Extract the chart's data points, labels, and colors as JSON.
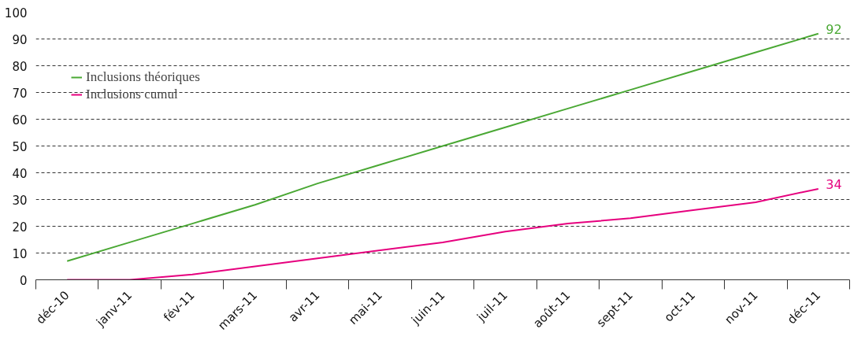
{
  "chart_data": {
    "type": "line",
    "categories": [
      "déc-10",
      "janv-11",
      "fév-11",
      "mars-11",
      "avr-11",
      "mai-11",
      "juin-11",
      "juil-11",
      "août-11",
      "sept-11",
      "oct-11",
      "nov-11",
      "déc-11"
    ],
    "series": [
      {
        "name": "Inclusions théoriques",
        "color": "#4aa834",
        "values": [
          7,
          14,
          21,
          28,
          36,
          43,
          50,
          57,
          64,
          71,
          78,
          85,
          92
        ],
        "value_labels": [
          null,
          null,
          null,
          null,
          null,
          null,
          null,
          null,
          null,
          null,
          null,
          null,
          "92"
        ]
      },
      {
        "name": "Inclusions cumul",
        "color": "#e6007e",
        "values": [
          0,
          0,
          2,
          5,
          8,
          11,
          14,
          18,
          21,
          23,
          26,
          29,
          34
        ],
        "value_labels": [
          null,
          null,
          null,
          null,
          null,
          null,
          null,
          null,
          null,
          null,
          null,
          null,
          "34"
        ]
      }
    ],
    "ylim": [
      0,
      100
    ],
    "yticks": [
      0,
      10,
      20,
      30,
      40,
      50,
      60,
      70,
      80,
      90,
      100
    ],
    "grid": "y",
    "legend": "top left",
    "marker": "none",
    "line_style": "solid"
  }
}
